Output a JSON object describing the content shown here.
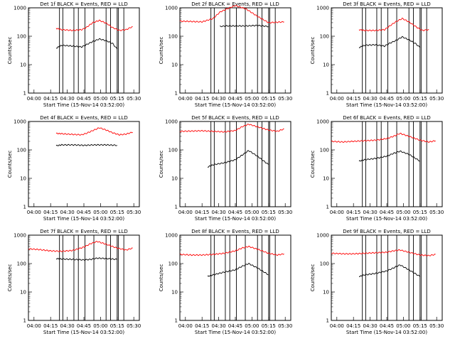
{
  "chart_data": [
    {
      "type": "line",
      "title": "Det 1f BLACK = Events, RED = LLD",
      "xlabel": "Start Time (15-Nov-14 03:52:00)",
      "ylabel": "Counts/sec",
      "yscale": "log",
      "ylim": [
        1,
        1000
      ],
      "x_ticks": [
        "04:00",
        "04:15",
        "04:30",
        "04:45",
        "05:00",
        "05:15",
        "05:30"
      ],
      "y_ticks": [
        "1",
        "10",
        "100",
        "1000"
      ],
      "series": [
        {
          "color": "#ff0000",
          "x": [
            25,
            30,
            40,
            48,
            52,
            58,
            64,
            70,
            76,
            82,
            88,
            94
          ],
          "values": [
            190,
            170,
            160,
            170,
            200,
            300,
            360,
            290,
            200,
            160,
            170,
            220
          ]
        },
        {
          "color": "#000000",
          "x": [
            25,
            30,
            40,
            48,
            52,
            58,
            64,
            70,
            76,
            80
          ],
          "values": [
            38,
            48,
            45,
            42,
            50,
            65,
            80,
            70,
            55,
            35
          ]
        }
      ],
      "event_lines_x": [
        28,
        31,
        41,
        45,
        51,
        59,
        70,
        74,
        80,
        81,
        86
      ]
    },
    {
      "type": "line",
      "title": "Det 2f BLACK = Events, RED = LLD",
      "xlabel": "Start Time (15-Nov-14 03:52:00)",
      "ylabel": "Counts/sec",
      "yscale": "log",
      "ylim": [
        1,
        1000
      ],
      "x_ticks": [
        "04:00",
        "04:15",
        "04:30",
        "04:45",
        "05:00",
        "05:15",
        "05:30"
      ],
      "y_ticks": [
        "1",
        "10",
        "100",
        "1000"
      ],
      "series": [
        {
          "color": "#ff0000",
          "x": [
            0,
            10,
            20,
            30,
            36,
            42,
            50,
            60,
            70,
            80,
            94
          ],
          "values": [
            340,
            330,
            320,
            420,
            700,
            900,
            1200,
            900,
            500,
            300,
            320
          ]
        },
        {
          "color": "#000000",
          "x": [
            36,
            42,
            50,
            60,
            70,
            80
          ],
          "values": [
            220,
            230,
            230,
            230,
            240,
            220
          ]
        }
      ],
      "event_lines_x": [
        28,
        31,
        41,
        45,
        51,
        59,
        70,
        74,
        80,
        81,
        86
      ]
    },
    {
      "type": "line",
      "title": "Det 3f BLACK = Events, RED = LLD",
      "xlabel": "Start Time (15-Nov-14 03:52:00)",
      "ylabel": "Counts/sec",
      "yscale": "log",
      "ylim": [
        1,
        1000
      ],
      "x_ticks": [
        "04:00",
        "04:15",
        "04:30",
        "04:45",
        "05:00",
        "05:15",
        "05:30"
      ],
      "y_ticks": [
        "1",
        "10",
        "100",
        "1000"
      ],
      "series": [
        {
          "color": "#ff0000",
          "x": [
            25,
            30,
            40,
            48,
            52,
            58,
            64,
            70,
            76,
            82,
            88
          ],
          "values": [
            170,
            160,
            160,
            170,
            220,
            320,
            420,
            320,
            220,
            160,
            170
          ]
        },
        {
          "color": "#000000",
          "x": [
            25,
            30,
            40,
            48,
            52,
            58,
            64,
            70,
            76,
            80
          ],
          "values": [
            40,
            48,
            50,
            45,
            55,
            70,
            95,
            75,
            55,
            40
          ]
        }
      ],
      "event_lines_x": [
        28,
        31,
        41,
        45,
        51,
        59,
        70,
        74,
        80,
        81,
        86
      ]
    },
    {
      "type": "line",
      "title": "Det 4f BLACK = Events, RED = LLD",
      "xlabel": "Start Time (15-Nov-14 03:52:00)",
      "ylabel": "Counts/sec",
      "yscale": "log",
      "ylim": [
        1,
        1000
      ],
      "x_ticks": [
        "04:00",
        "04:15",
        "04:30",
        "04:45",
        "05:00",
        "05:15",
        "05:30"
      ],
      "y_ticks": [
        "1",
        "10",
        "100",
        "1000"
      ],
      "series": [
        {
          "color": "#ff0000",
          "x": [
            25,
            30,
            40,
            48,
            52,
            58,
            64,
            70,
            76,
            82,
            88,
            94
          ],
          "values": [
            380,
            370,
            350,
            340,
            380,
            480,
            600,
            500,
            400,
            340,
            360,
            420
          ]
        },
        {
          "color": "#000000",
          "x": [
            25,
            30,
            40,
            50,
            60,
            70,
            80
          ],
          "values": [
            140,
            150,
            150,
            145,
            150,
            150,
            145
          ]
        }
      ],
      "event_lines_x": []
    },
    {
      "type": "line",
      "title": "Det 5f BLACK = Events, RED = LLD",
      "xlabel": "Start Time (15-Nov-14 03:52:00)",
      "ylabel": "Counts/sec",
      "yscale": "log",
      "ylim": [
        1,
        1000
      ],
      "x_ticks": [
        "04:00",
        "04:15",
        "04:30",
        "04:45",
        "05:00",
        "05:15",
        "05:30"
      ],
      "y_ticks": [
        "1",
        "10",
        "100",
        "1000"
      ],
      "series": [
        {
          "color": "#ff0000",
          "x": [
            0,
            10,
            20,
            30,
            40,
            50,
            56,
            62,
            70,
            80,
            88,
            94
          ],
          "values": [
            450,
            460,
            470,
            450,
            430,
            480,
            650,
            800,
            650,
            500,
            450,
            550
          ]
        },
        {
          "color": "#000000",
          "x": [
            25,
            30,
            40,
            50,
            56,
            62,
            70,
            80
          ],
          "values": [
            25,
            30,
            35,
            45,
            65,
            95,
            60,
            30
          ]
        }
      ],
      "event_lines_x": [
        28,
        31,
        41,
        45,
        51,
        59,
        70,
        74,
        80,
        81,
        86
      ]
    },
    {
      "type": "line",
      "title": "Det 6f BLACK = Events, RED = LLD",
      "xlabel": "Start Time (15-Nov-14 03:52:00)",
      "ylabel": "Counts/sec",
      "yscale": "log",
      "ylim": [
        1,
        1000
      ],
      "x_ticks": [
        "04:00",
        "04:15",
        "04:30",
        "04:45",
        "05:00",
        "05:15",
        "05:30"
      ],
      "y_ticks": [
        "1",
        "10",
        "100",
        "1000"
      ],
      "series": [
        {
          "color": "#ff0000",
          "x": [
            0,
            10,
            20,
            30,
            40,
            50,
            56,
            62,
            70,
            80,
            88,
            94
          ],
          "values": [
            200,
            190,
            200,
            210,
            220,
            250,
            300,
            380,
            300,
            220,
            190,
            210
          ]
        },
        {
          "color": "#000000",
          "x": [
            25,
            30,
            40,
            50,
            56,
            62,
            70,
            80
          ],
          "values": [
            40,
            45,
            50,
            60,
            75,
            90,
            70,
            40
          ]
        }
      ],
      "event_lines_x": [
        28,
        31,
        41,
        45,
        51,
        59,
        70,
        74,
        80,
        81,
        86
      ]
    },
    {
      "type": "line",
      "title": "Det 7f BLACK = Events, RED = LLD",
      "xlabel": "Start Time (15-Nov-14 03:52:00)",
      "ylabel": "Counts/sec",
      "yscale": "log",
      "ylim": [
        1,
        1000
      ],
      "x_ticks": [
        "04:00",
        "04:15",
        "04:30",
        "04:45",
        "05:00",
        "05:15",
        "05:30"
      ],
      "y_ticks": [
        "1",
        "10",
        "100",
        "1000"
      ],
      "series": [
        {
          "color": "#ff0000",
          "x": [
            0,
            10,
            20,
            30,
            40,
            50,
            56,
            62,
            70,
            80,
            88,
            94
          ],
          "values": [
            330,
            310,
            280,
            270,
            290,
            380,
            500,
            600,
            480,
            350,
            300,
            350
          ]
        },
        {
          "color": "#000000",
          "x": [
            25,
            30,
            40,
            50,
            56,
            62,
            70,
            80
          ],
          "values": [
            150,
            145,
            140,
            135,
            140,
            155,
            150,
            140
          ]
        }
      ],
      "event_lines_x": [
        28,
        31,
        41,
        45,
        51,
        59,
        70,
        74,
        80,
        81,
        86
      ]
    },
    {
      "type": "line",
      "title": "Det 8f BLACK = Events, RED = LLD",
      "xlabel": "Start Time (15-Nov-14 03:52:00)",
      "ylabel": "Counts/sec",
      "yscale": "log",
      "ylim": [
        1,
        1000
      ],
      "x_ticks": [
        "04:00",
        "04:15",
        "04:30",
        "04:45",
        "05:00",
        "05:15",
        "05:30"
      ],
      "y_ticks": [
        "1",
        "10",
        "100",
        "1000"
      ],
      "series": [
        {
          "color": "#ff0000",
          "x": [
            0,
            10,
            20,
            30,
            40,
            50,
            56,
            62,
            70,
            80,
            88,
            94
          ],
          "values": [
            210,
            200,
            200,
            210,
            230,
            280,
            350,
            400,
            320,
            230,
            200,
            220
          ]
        },
        {
          "color": "#000000",
          "x": [
            25,
            30,
            40,
            50,
            56,
            62,
            70,
            80
          ],
          "values": [
            35,
            40,
            50,
            60,
            80,
            100,
            70,
            40
          ]
        }
      ],
      "event_lines_x": [
        28,
        31,
        41,
        45,
        51,
        59,
        70,
        74,
        80,
        81,
        86
      ]
    },
    {
      "type": "line",
      "title": "Det 9f BLACK = Events, RED = LLD",
      "xlabel": "Start Time (15-Nov-14 03:52:00)",
      "ylabel": "Counts/sec",
      "yscale": "log",
      "ylim": [
        1,
        1000
      ],
      "x_ticks": [
        "04:00",
        "04:15",
        "04:30",
        "04:45",
        "05:00",
        "05:15",
        "05:30"
      ],
      "y_ticks": [
        "1",
        "10",
        "100",
        "1000"
      ],
      "series": [
        {
          "color": "#ff0000",
          "x": [
            0,
            10,
            20,
            30,
            40,
            50,
            56,
            62,
            70,
            80,
            88,
            94
          ],
          "values": [
            230,
            220,
            220,
            230,
            240,
            250,
            280,
            300,
            250,
            200,
            190,
            210
          ]
        },
        {
          "color": "#000000",
          "x": [
            25,
            30,
            40,
            50,
            56,
            62,
            70,
            80
          ],
          "values": [
            35,
            40,
            45,
            55,
            70,
            90,
            60,
            35
          ]
        }
      ],
      "event_lines_x": [
        28,
        31,
        41,
        45,
        51,
        59,
        70,
        74,
        80,
        81,
        86
      ]
    }
  ]
}
